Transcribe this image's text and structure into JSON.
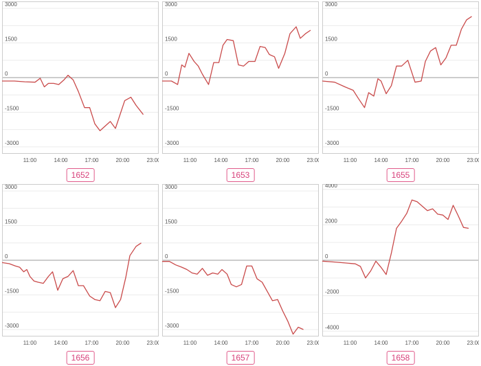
{
  "chart_data": [
    {
      "type": "line",
      "label": "1652",
      "ylim": [
        -3300,
        3300
      ],
      "yticks": [
        3000,
        1500,
        0,
        -1500,
        -3000
      ],
      "xlim": [
        8.3,
        23.5
      ],
      "xticks": [
        "11:00",
        "14:00",
        "17:00",
        "20:00",
        "23:00"
      ],
      "xtick_hours": [
        11,
        14,
        17,
        20,
        23
      ],
      "x": [
        8.3,
        9.5,
        10.5,
        11.5,
        12.0,
        12.4,
        12.8,
        13.3,
        13.8,
        14.3,
        14.7,
        15.2,
        15.7,
        16.3,
        16.8,
        17.3,
        17.8,
        18.3,
        18.8,
        19.3,
        20.2,
        20.8,
        21.3,
        22.0
      ],
      "series": [
        {
          "values": [
            -150,
            -150,
            -180,
            -200,
            -30,
            -400,
            -250,
            -250,
            -300,
            -100,
            100,
            -100,
            -600,
            -1300,
            -1300,
            -2000,
            -2300,
            -2100,
            -1900,
            -2200,
            -1000,
            -850,
            -1200,
            -1600
          ]
        }
      ],
      "colors": {
        "line": "#c94a4a",
        "zero": "#999999",
        "grid": "#ececec",
        "frame": "#cccccc"
      }
    },
    {
      "type": "line",
      "label": "1653",
      "ylim": [
        -3300,
        3300
      ],
      "yticks": [
        3000,
        1500,
        0,
        -1500,
        -3000
      ],
      "xlim": [
        8.3,
        23.5
      ],
      "xticks": [
        "11:00",
        "14:00",
        "17:00",
        "20:00",
        "23:00"
      ],
      "xtick_hours": [
        11,
        14,
        17,
        20,
        23
      ],
      "x": [
        8.3,
        9.2,
        9.8,
        10.2,
        10.5,
        10.9,
        11.4,
        11.8,
        12.2,
        12.8,
        13.3,
        13.8,
        14.2,
        14.6,
        15.2,
        15.7,
        16.2,
        16.7,
        17.3,
        17.8,
        18.3,
        18.7,
        19.2,
        19.6,
        20.2,
        20.7,
        21.3,
        21.7,
        22.2,
        22.7
      ],
      "series": [
        {
          "values": [
            -150,
            -150,
            -300,
            550,
            450,
            1050,
            700,
            500,
            150,
            -300,
            650,
            650,
            1400,
            1650,
            1600,
            550,
            500,
            700,
            700,
            1350,
            1300,
            1000,
            900,
            400,
            1050,
            1900,
            2200,
            1700,
            1900,
            2050
          ]
        }
      ],
      "colors": {
        "line": "#c94a4a",
        "zero": "#999999",
        "grid": "#ececec",
        "frame": "#cccccc"
      }
    },
    {
      "type": "line",
      "label": "1655",
      "ylim": [
        -3300,
        3300
      ],
      "yticks": [
        3000,
        1500,
        0,
        -1500,
        -3000
      ],
      "xlim": [
        8.3,
        23.5
      ],
      "xticks": [
        "11:00",
        "14:00",
        "17:00",
        "20:00",
        "23:00"
      ],
      "xtick_hours": [
        11,
        14,
        17,
        20,
        23
      ],
      "x": [
        8.3,
        9.5,
        10.5,
        11.3,
        11.8,
        12.4,
        12.8,
        13.3,
        13.7,
        14.0,
        14.5,
        15.0,
        15.5,
        16.0,
        16.6,
        17.3,
        17.9,
        18.3,
        18.8,
        19.3,
        19.8,
        20.3,
        20.8,
        21.3,
        21.8,
        22.3,
        22.8
      ],
      "series": [
        {
          "values": [
            -150,
            -200,
            -400,
            -550,
            -900,
            -1300,
            -650,
            -800,
            -50,
            -150,
            -700,
            -350,
            500,
            500,
            750,
            -200,
            -150,
            700,
            1150,
            1300,
            550,
            850,
            1400,
            1400,
            2100,
            2500,
            2650
          ]
        }
      ],
      "colors": {
        "line": "#c94a4a",
        "zero": "#999999",
        "grid": "#ececec",
        "frame": "#cccccc"
      }
    },
    {
      "type": "line",
      "label": "1656",
      "ylim": [
        -3300,
        3300
      ],
      "yticks": [
        3000,
        1500,
        0,
        -1500,
        -3000
      ],
      "xlim": [
        8.3,
        23.5
      ],
      "xticks": [
        "11:00",
        "14:00",
        "17:00",
        "20:00",
        "23:00"
      ],
      "xtick_hours": [
        11,
        14,
        17,
        20,
        23
      ],
      "x": [
        8.3,
        9.0,
        9.6,
        10.0,
        10.4,
        10.7,
        11.0,
        11.4,
        11.8,
        12.3,
        12.8,
        13.2,
        13.7,
        14.2,
        14.7,
        15.2,
        15.7,
        16.2,
        16.8,
        17.3,
        17.8,
        18.3,
        18.8,
        19.3,
        19.8,
        20.3,
        20.7,
        21.3,
        21.8
      ],
      "series": [
        {
          "values": [
            -100,
            -150,
            -250,
            -300,
            -500,
            -400,
            -700,
            -900,
            -950,
            -1000,
            -700,
            -500,
            -1300,
            -800,
            -700,
            -450,
            -1100,
            -1100,
            -1550,
            -1700,
            -1750,
            -1350,
            -1400,
            -2050,
            -1700,
            -750,
            200,
            600,
            750
          ]
        }
      ],
      "colors": {
        "line": "#c94a4a",
        "zero": "#999999",
        "grid": "#ececec",
        "frame": "#cccccc"
      }
    },
    {
      "type": "line",
      "label": "1657",
      "ylim": [
        -3300,
        3300
      ],
      "yticks": [
        3000,
        1500,
        0,
        -1500,
        -3000
      ],
      "xlim": [
        8.3,
        23.5
      ],
      "xticks": [
        "11:00",
        "14:00",
        "17:00",
        "20:00",
        "23:00"
      ],
      "xtick_hours": [
        11,
        14,
        17,
        20,
        23
      ],
      "x": [
        8.3,
        9.0,
        9.6,
        10.2,
        10.7,
        11.2,
        11.7,
        12.2,
        12.7,
        13.2,
        13.7,
        14.1,
        14.6,
        15.0,
        15.5,
        16.0,
        16.5,
        17.0,
        17.5,
        18.0,
        18.5,
        19.0,
        19.5,
        20.0,
        20.5,
        21.0,
        21.5,
        22.0
      ],
      "series": [
        {
          "values": [
            -50,
            -50,
            -200,
            -300,
            -400,
            -550,
            -600,
            -350,
            -650,
            -550,
            -600,
            -400,
            -600,
            -1050,
            -1150,
            -1050,
            -250,
            -250,
            -800,
            -950,
            -1350,
            -1750,
            -1700,
            -2200,
            -2650,
            -3200,
            -2900,
            -3000
          ]
        }
      ],
      "colors": {
        "line": "#c94a4a",
        "zero": "#999999",
        "grid": "#ececec",
        "frame": "#cccccc"
      }
    },
    {
      "type": "line",
      "label": "1658",
      "ylim": [
        -4300,
        4300
      ],
      "yticks": [
        4000,
        2000,
        0,
        -2000,
        -4000
      ],
      "xlim": [
        8.3,
        23.5
      ],
      "xticks": [
        "11:00",
        "14:00",
        "17:00",
        "20:00",
        "23:00"
      ],
      "xtick_hours": [
        11,
        14,
        17,
        20,
        23
      ],
      "x": [
        8.3,
        9.5,
        10.5,
        11.5,
        12.0,
        12.5,
        13.0,
        13.5,
        14.0,
        14.5,
        15.0,
        15.5,
        16.0,
        16.5,
        17.0,
        17.5,
        18.0,
        18.5,
        19.0,
        19.5,
        20.0,
        20.5,
        21.0,
        21.5,
        22.0,
        22.5
      ],
      "series": [
        {
          "values": [
            -50,
            -100,
            -150,
            -200,
            -350,
            -1000,
            -600,
            -50,
            -400,
            -800,
            400,
            1800,
            2200,
            2650,
            3400,
            3300,
            3050,
            2800,
            2900,
            2600,
            2550,
            2300,
            3100,
            2500,
            1850,
            1800
          ]
        }
      ],
      "colors": {
        "line": "#c94a4a",
        "zero": "#999999",
        "grid": "#ececec",
        "frame": "#cccccc"
      }
    }
  ]
}
